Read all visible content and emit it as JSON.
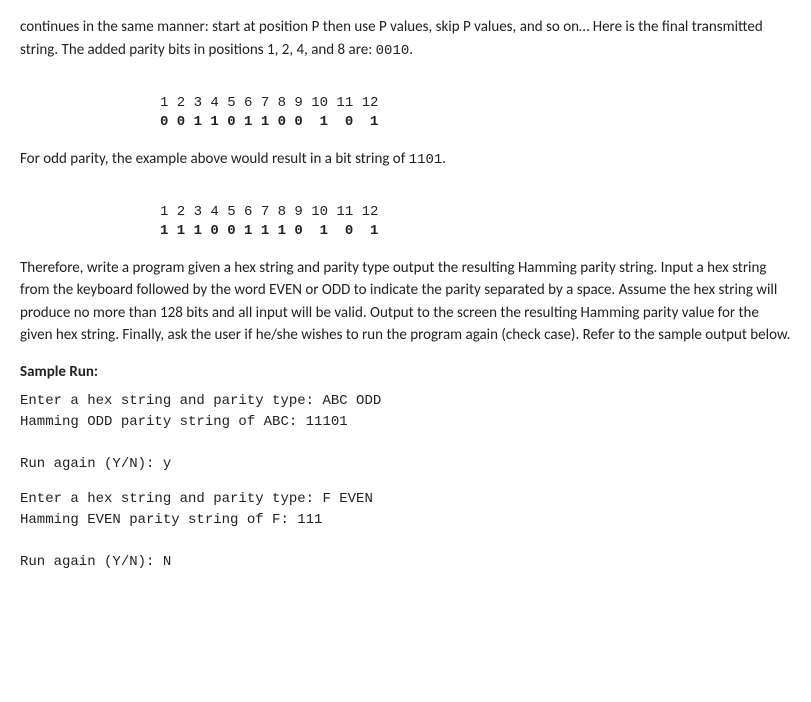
{
  "para1": "continues in the same manner: start at position P then use P values, skip P values, and so on… Here is the final transmitted string. The added parity bits in positions 1, 2, 4, and 8 are: ",
  "para1_code": "0010",
  "para1_end": ".",
  "table1_header": "1 2 3 4 5 6 7 8 9 10 11 12",
  "table1_values": "0 0 1 1 0 1 1 0 0  1  0  1",
  "para2": "For odd parity, the example above would result in a bit string of ",
  "para2_code": "1101",
  "para2_end": ".",
  "table2_header": "1 2 3 4 5 6 7 8 9 10 11 12",
  "table2_values": "1 1 1 0 0 1 1 1 0  1  0  1",
  "para3": "Therefore, write a program given a hex string and parity type output the resulting Hamming parity string. Input a hex string from the keyboard followed by the word EVEN or ODD to indicate the parity separated by a space. Assume the hex string will produce no more than 128 bits and all input will be valid. Output to the screen the resulting Hamming parity value for the given hex string.  Finally, ask the user if he/she wishes to run the program again (check case). Refer to the sample output below.",
  "sample_run_label": "Sample Run:",
  "sample1_line1": "Enter a hex string and parity type: ABC ODD",
  "sample1_line2": "Hamming ODD parity string of ABC: 11101",
  "sample1_line3": "Run again (Y/N): y",
  "sample2_line1": "Enter a hex string and parity type: F EVEN",
  "sample2_line2": "Hamming EVEN parity string of F: 111",
  "sample2_line3": "Run again (Y/N): N"
}
